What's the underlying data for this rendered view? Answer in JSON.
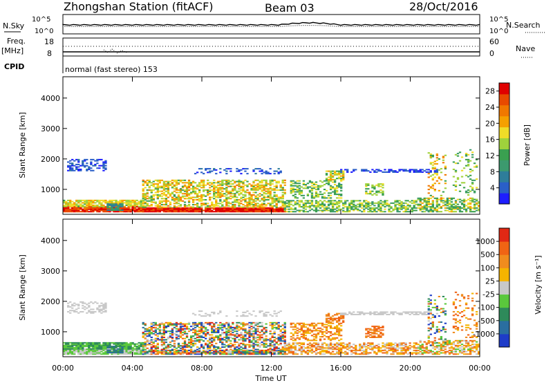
{
  "header": {
    "station": "Zhongshan Station (fitACF)",
    "beam": "Beam 03",
    "date": "28/Oct/2016"
  },
  "nsky_panel": {
    "left_label": "N.Sky",
    "right_label": "N.Search",
    "left_ticks": [
      "10^5",
      "10^0"
    ],
    "right_ticks": [
      "10^5",
      "10^0"
    ]
  },
  "freq_panel": {
    "left_label_1": "Freq.",
    "left_label_2": "[MHz]",
    "right_label": "Nave",
    "left_ticks": [
      "18",
      "8"
    ],
    "right_ticks": [
      "60",
      "0"
    ]
  },
  "cpid_panel": {
    "label": "CPID",
    "mode": "normal (fast stereo) 153"
  },
  "chart_data": [
    {
      "type": "heatmap",
      "name": "power",
      "ylabel": "Slant Range [km]",
      "xlabel": "Time UT",
      "x_ticks": [
        "00:00",
        "04:00",
        "08:00",
        "12:00",
        "16:00",
        "20:00",
        "00:00"
      ],
      "y_ticks": [
        "1000",
        "2000",
        "3000",
        "4000"
      ],
      "ylim": [
        180,
        4700
      ],
      "xlim_hours": [
        0,
        24
      ],
      "colorbar": {
        "label": "Power [dB]",
        "ticks": [
          "4",
          "8",
          "12",
          "16",
          "20",
          "24",
          "28"
        ],
        "range": [
          0,
          30
        ],
        "colors": [
          "#1e1eff",
          "#2a5fc8",
          "#2e7d9a",
          "#3c9a6e",
          "#3aa050",
          "#9fd23c",
          "#f0dc28",
          "#f5a000",
          "#f07800",
          "#e84a00",
          "#e00000"
        ]
      }
    },
    {
      "type": "heatmap",
      "name": "velocity",
      "ylabel": "Slant Range [km]",
      "xlabel": "Time UT",
      "x_ticks": [
        "00:00",
        "04:00",
        "08:00",
        "12:00",
        "16:00",
        "20:00",
        "00:00"
      ],
      "y_ticks": [
        "1000",
        "2000",
        "3000",
        "4000"
      ],
      "ylim": [
        180,
        4700
      ],
      "xlim_hours": [
        0,
        24
      ],
      "colorbar": {
        "label": "Velocity [m s⁻¹]",
        "ticks": [
          "1000",
          "500",
          "100",
          "25",
          "-25",
          "-100",
          "-500",
          "-1000"
        ],
        "colors": [
          "#1e3cc8",
          "#2a6ea0",
          "#2e8a5a",
          "#5ac83c",
          "#c8c8c8",
          "#f5b400",
          "#f08c1e",
          "#f06414",
          "#e02814"
        ]
      }
    }
  ],
  "x_axis_title": "Time UT"
}
